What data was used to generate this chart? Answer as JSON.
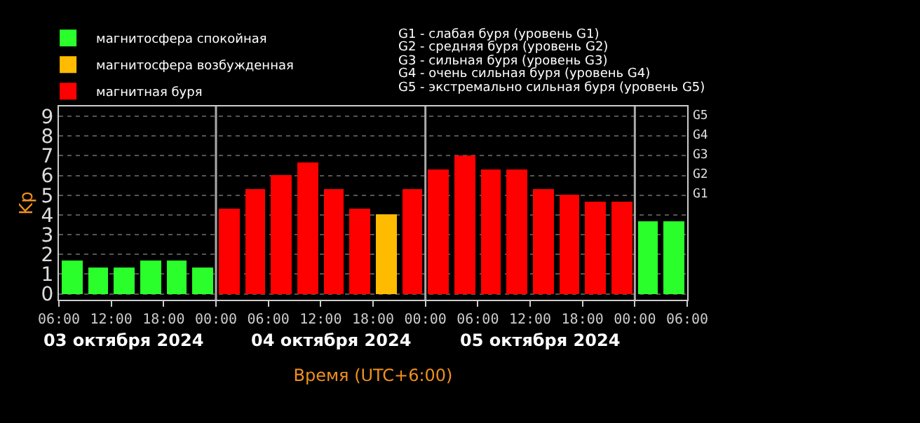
{
  "chart_data": {
    "type": "bar",
    "ylabel": "Kp",
    "xlabel": "Время (UTC+6:00)",
    "x": [
      "2024-10-03T07:30",
      "2024-10-03T10:30",
      "2024-10-03T13:30",
      "2024-10-03T16:30",
      "2024-10-03T19:30",
      "2024-10-03T22:30",
      "2024-10-04T01:30",
      "2024-10-04T04:30",
      "2024-10-04T07:30",
      "2024-10-04T10:30",
      "2024-10-04T13:30",
      "2024-10-04T16:30",
      "2024-10-04T19:30",
      "2024-10-04T22:30",
      "2024-10-05T01:30",
      "2024-10-05T04:30",
      "2024-10-05T07:30",
      "2024-10-05T10:30",
      "2024-10-05T13:30",
      "2024-10-05T16:30",
      "2024-10-05T19:30",
      "2024-10-05T22:30",
      "2024-10-06T01:30",
      "2024-10-06T04:30"
    ],
    "series": [
      {
        "name": "магнитосфера спокойная",
        "color": "#2bff2b",
        "values": [
          1.67,
          1.33,
          1.33,
          1.67,
          1.67,
          1.33,
          null,
          null,
          null,
          null,
          null,
          null,
          null,
          null,
          null,
          null,
          null,
          null,
          null,
          null,
          null,
          null,
          3.67,
          3.67
        ]
      },
      {
        "name": "магнитосфера возбужденная",
        "color": "#ffbb00",
        "values": [
          null,
          null,
          null,
          null,
          null,
          null,
          null,
          null,
          null,
          null,
          null,
          null,
          4,
          null,
          null,
          null,
          null,
          null,
          null,
          null,
          null,
          null,
          null,
          null
        ]
      },
      {
        "name": "магнитная буря",
        "color": "#ff0000",
        "values": [
          null,
          null,
          null,
          null,
          null,
          null,
          4.33,
          5.33,
          6,
          6.67,
          5.33,
          4.33,
          null,
          5.33,
          6.33,
          7,
          6.33,
          6.33,
          5.33,
          5,
          4.67,
          4.67,
          null,
          null
        ]
      }
    ],
    "xlim": [
      "2024-10-03T06:00",
      "2024-10-06T06:00"
    ],
    "xticks": [
      {
        "value": "2024-10-03T06:00",
        "label": "06:00"
      },
      {
        "value": "2024-10-03T12:00",
        "label": "12:00"
      },
      {
        "value": "2024-10-03T18:00",
        "label": "18:00"
      },
      {
        "value": "2024-10-04T00:00",
        "label": "00:00"
      },
      {
        "value": "2024-10-04T06:00",
        "label": "06:00"
      },
      {
        "value": "2024-10-04T12:00",
        "label": "12:00"
      },
      {
        "value": "2024-10-04T18:00",
        "label": "18:00"
      },
      {
        "value": "2024-10-05T00:00",
        "label": "00:00"
      },
      {
        "value": "2024-10-05T06:00",
        "label": "06:00"
      },
      {
        "value": "2024-10-05T12:00",
        "label": "12:00"
      },
      {
        "value": "2024-10-05T18:00",
        "label": "18:00"
      },
      {
        "value": "2024-10-06T00:00",
        "label": "00:00"
      },
      {
        "value": "2024-10-06T06:00",
        "label": "06:00"
      }
    ],
    "ylim": [
      -0.3,
      9.5
    ],
    "yticks": [
      0,
      1,
      2,
      3,
      4,
      5,
      6,
      7,
      8,
      9
    ],
    "ref_lines": [
      {
        "axis": "x",
        "value": "2024-10-04T00:00",
        "color": "#aaaaaa"
      },
      {
        "axis": "x",
        "value": "2024-10-05T00:00",
        "color": "#aaaaaa"
      },
      {
        "axis": "x",
        "value": "2024-10-06T00:00",
        "color": "#aaaaaa"
      }
    ],
    "annotations": [
      "G1 - слабая буря (уровень G1)",
      "G2 - средняя буря (уровень G2)",
      "G3 - сильная буря (уровень G3)",
      "G4 - очень сильная буря (уровень G4)",
      "G5 - экстремально сильная буря (уровень G5)",
      "03 октября 2024",
      "04 октября 2024",
      "05 октября 2024",
      "G1",
      "G2",
      "G3",
      "G4",
      "G5"
    ],
    "grid": "y",
    "legend": "top left"
  }
}
